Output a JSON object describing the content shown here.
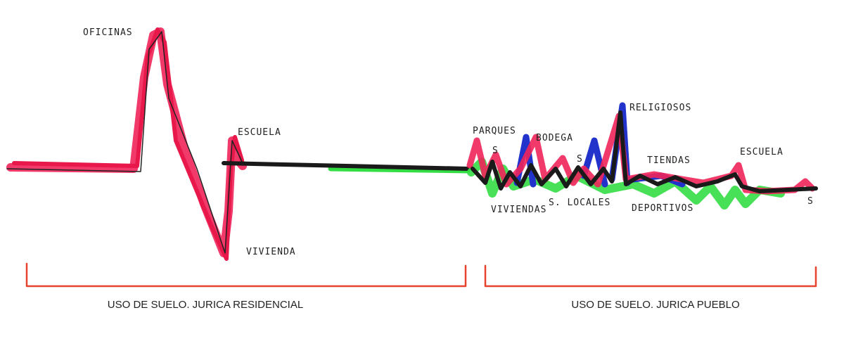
{
  "labels": {
    "oficinas": "OFICINAS",
    "escuela_1": "ESCUELA",
    "vivienda": "VIVIENDA",
    "parques": "PARQUES",
    "bodega": "BODEGA",
    "religiosos": "RELIGIOSOS",
    "tiendas": "TIENDAS",
    "escuela_2": "ESCUELA",
    "viviendas": "VIVIENDAS",
    "s_locales": "S. LOCALES",
    "deportivos": "DEPORTIVOS",
    "s_marks": [
      "S",
      "S",
      "S"
    ]
  },
  "sections": [
    "USO DE SUELO. JURICA RESIDENCIAL",
    "USO DE SUELO. JURICA PUEBLO"
  ]
}
